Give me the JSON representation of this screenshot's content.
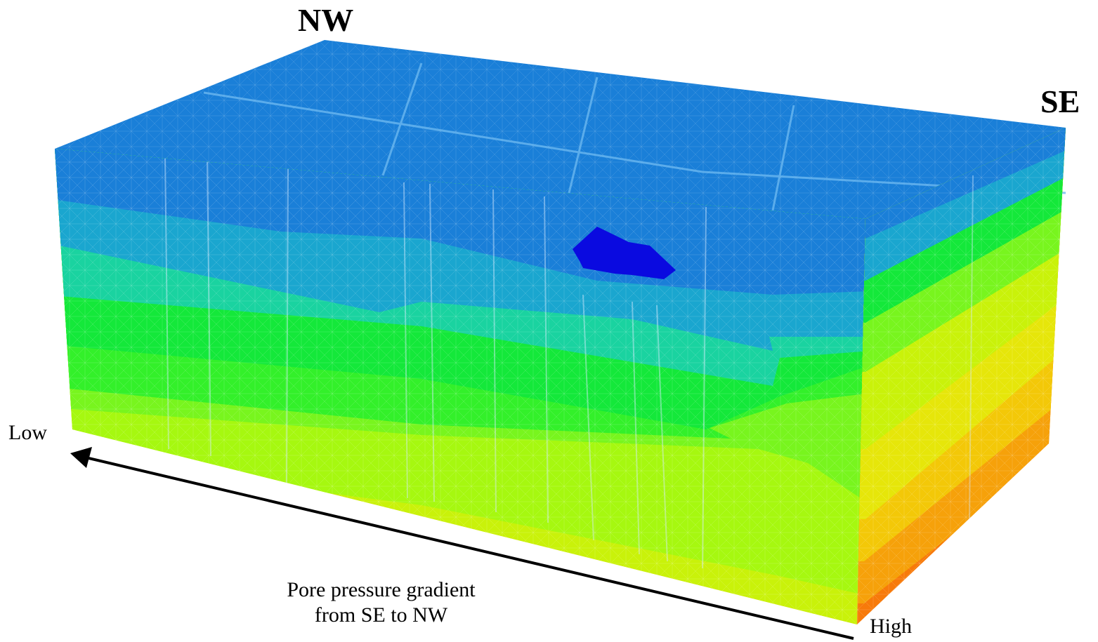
{
  "labels": {
    "nw": "NW",
    "se": "SE",
    "low": "Low",
    "high": "High",
    "caption_line1": "Pore pressure gradient",
    "caption_line2": "from SE to NW"
  },
  "colors": {
    "top": "#1a7fd8",
    "band1": "#1aa6cf",
    "band2": "#1ad3a0",
    "band3": "#14e83a",
    "band4": "#33f02a",
    "band5": "#78f51e",
    "band6": "#a6f810",
    "band7": "#c9f20a",
    "band8": "#e6e60a",
    "band9": "#f3c808",
    "band10": "#f6a10a",
    "band11": "#f77a0a",
    "anomaly": "#0a0ae0",
    "mesh": "#d8ecff",
    "arrow": "#000000"
  }
}
